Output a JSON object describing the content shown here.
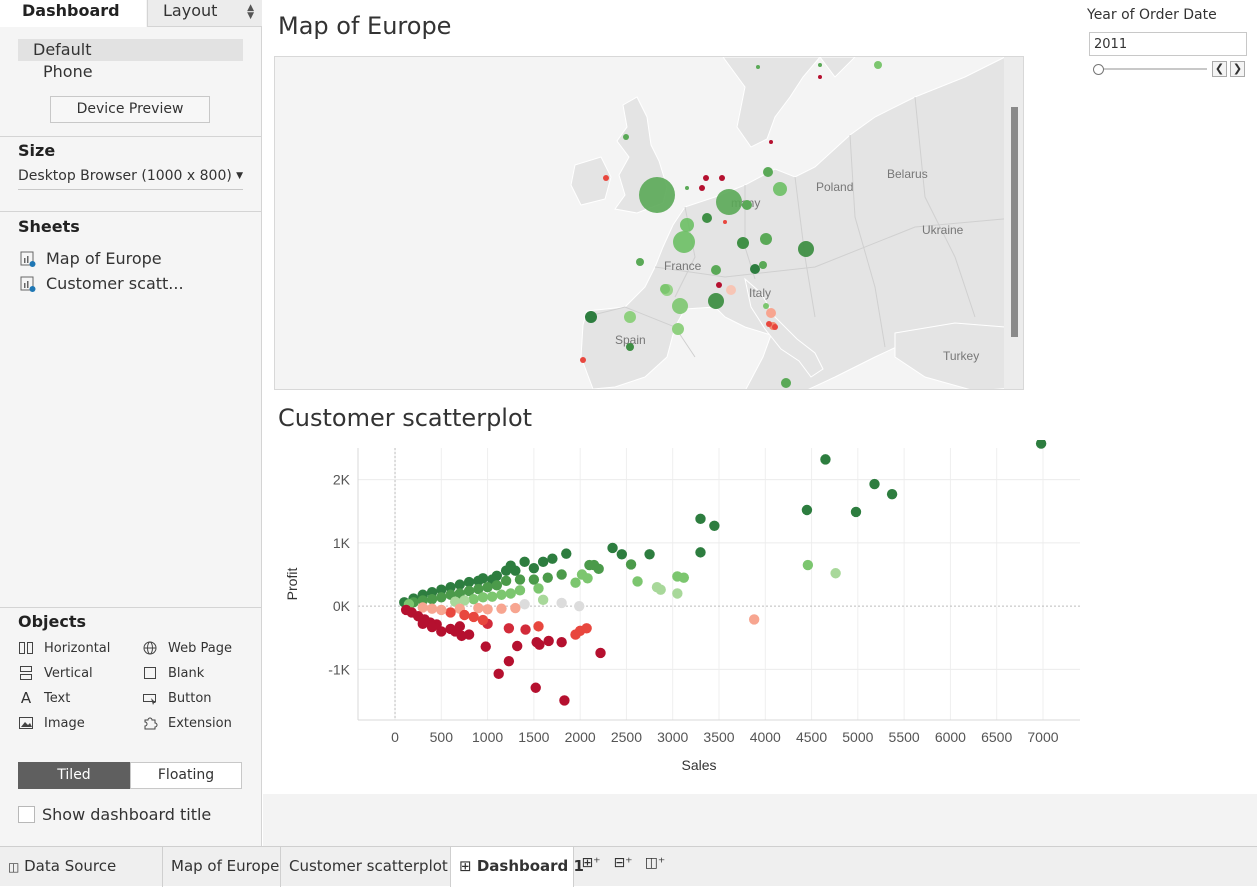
{
  "left_panel": {
    "tabs": {
      "dashboard": "Dashboard",
      "layout": "Layout"
    },
    "devices": {
      "default": "Default",
      "phone": "Phone"
    },
    "device_preview_label": "Device Preview",
    "size": {
      "heading": "Size",
      "value": "Desktop Browser (1000 x 800)"
    },
    "sheets": {
      "heading": "Sheets",
      "items": [
        "Map of Europe",
        "Customer scatt..."
      ]
    },
    "objects": {
      "heading": "Objects",
      "items": [
        "Horizontal",
        "Web Page",
        "Vertical",
        "Blank",
        "Text",
        "Button",
        "Image",
        "Extension"
      ]
    },
    "tiled_label": "Tiled",
    "floating_label": "Floating",
    "show_title_label": "Show dashboard title"
  },
  "map": {
    "title": "Map of Europe",
    "labels": [
      "Poland",
      "Belarus",
      "Ukraine",
      "France",
      "Spain",
      "Turkey",
      "many",
      "Italy"
    ]
  },
  "scatter": {
    "title": "Customer scatterplot"
  },
  "filter": {
    "label": "Year of Order Date",
    "value": "2011"
  },
  "bottom_tabs": {
    "data_source": "Data Source",
    "map": "Map of Europe",
    "scatter": "Customer scatterplot",
    "dashboard": "Dashboard 1"
  },
  "colors": {
    "dark_green": "#2d7d3f",
    "mid_green": "#5aa957",
    "light_green": "#a8d89a",
    "dark_red": "#b5102f",
    "mid_red": "#e8473e",
    "light_red": "#f7a590"
  },
  "chart_data": {
    "type": "scatter",
    "xlabel": "Sales",
    "ylabel": "Profit",
    "xlim": [
      -400,
      7400
    ],
    "ylim": [
      -1800,
      2500
    ],
    "xticks": [
      0,
      500,
      1000,
      1500,
      2000,
      2500,
      3000,
      3500,
      4000,
      4500,
      5000,
      5500,
      6000,
      6500,
      7000
    ],
    "xtick_labels": [
      "0",
      "500",
      "1000",
      "1500",
      "2000",
      "2500",
      "3000",
      "3500",
      "4000",
      "4500",
      "5000",
      "5500",
      "6000",
      "6500",
      "7000"
    ],
    "yticks": [
      -1000,
      0,
      1000,
      2000
    ],
    "ytick_labels": [
      "-1K",
      "0K",
      "1K",
      "2K"
    ],
    "grid": true,
    "points": [
      [
        6980,
        2570
      ],
      [
        4650,
        2320
      ],
      [
        5180,
        1930
      ],
      [
        5370,
        1770
      ],
      [
        4980,
        1490
      ],
      [
        4450,
        1520
      ],
      [
        3300,
        1380
      ],
      [
        3450,
        1270
      ],
      [
        3300,
        850
      ],
      [
        4460,
        650
      ],
      [
        4760,
        520
      ],
      [
        2750,
        820
      ],
      [
        2350,
        920
      ],
      [
        2450,
        820
      ],
      [
        2550,
        660
      ],
      [
        2620,
        390
      ],
      [
        2830,
        300
      ],
      [
        2870,
        260
      ],
      [
        3050,
        470
      ],
      [
        3120,
        450
      ],
      [
        3050,
        200
      ],
      [
        2100,
        650
      ],
      [
        2200,
        590
      ],
      [
        2150,
        650
      ],
      [
        2020,
        500
      ],
      [
        2080,
        440
      ],
      [
        1950,
        370
      ],
      [
        1850,
        830
      ],
      [
        1700,
        750
      ],
      [
        1800,
        500
      ],
      [
        1600,
        700
      ],
      [
        1500,
        600
      ],
      [
        1400,
        700
      ],
      [
        1300,
        560
      ],
      [
        1250,
        640
      ],
      [
        1200,
        560
      ],
      [
        1100,
        480
      ],
      [
        1050,
        420
      ],
      [
        950,
        440
      ],
      [
        900,
        400
      ],
      [
        800,
        380
      ],
      [
        700,
        340
      ],
      [
        600,
        300
      ],
      [
        500,
        260
      ],
      [
        400,
        220
      ],
      [
        300,
        180
      ],
      [
        200,
        120
      ],
      [
        100,
        60
      ],
      [
        1650,
        450
      ],
      [
        1500,
        420
      ],
      [
        1350,
        420
      ],
      [
        1200,
        400
      ],
      [
        1100,
        330
      ],
      [
        1000,
        300
      ],
      [
        900,
        270
      ],
      [
        800,
        240
      ],
      [
        700,
        200
      ],
      [
        600,
        180
      ],
      [
        500,
        140
      ],
      [
        400,
        110
      ],
      [
        300,
        90
      ],
      [
        200,
        60
      ],
      [
        150,
        30
      ],
      [
        1550,
        280
      ],
      [
        1350,
        250
      ],
      [
        1250,
        200
      ],
      [
        1150,
        180
      ],
      [
        1050,
        150
      ],
      [
        950,
        140
      ],
      [
        850,
        110
      ],
      [
        750,
        90
      ],
      [
        650,
        70
      ],
      [
        1990,
        0
      ],
      [
        1800,
        50
      ],
      [
        1600,
        100
      ],
      [
        1400,
        30
      ],
      [
        1300,
        -30
      ],
      [
        1150,
        -40
      ],
      [
        1000,
        -50
      ],
      [
        900,
        -30
      ],
      [
        700,
        -40
      ],
      [
        3880,
        -210
      ],
      [
        1230,
        -350
      ],
      [
        1410,
        -370
      ],
      [
        1550,
        -320
      ],
      [
        2000,
        -390
      ],
      [
        2070,
        -350
      ],
      [
        1800,
        -570
      ],
      [
        1950,
        -450
      ],
      [
        2220,
        -740
      ],
      [
        1660,
        -550
      ],
      [
        1000,
        -280
      ],
      [
        950,
        -220
      ],
      [
        850,
        -170
      ],
      [
        750,
        -140
      ],
      [
        600,
        -100
      ],
      [
        500,
        -60
      ],
      [
        400,
        -40
      ],
      [
        300,
        -20
      ],
      [
        980,
        -640
      ],
      [
        1120,
        -1070
      ],
      [
        1230,
        -870
      ],
      [
        1320,
        -630
      ],
      [
        1530,
        -570
      ],
      [
        1560,
        -610
      ],
      [
        1520,
        -1290
      ],
      [
        1830,
        -1490
      ],
      [
        700,
        -320
      ],
      [
        600,
        -360
      ],
      [
        500,
        -400
      ],
      [
        450,
        -290
      ],
      [
        380,
        -260
      ],
      [
        320,
        -210
      ],
      [
        250,
        -160
      ],
      [
        180,
        -100
      ],
      [
        120,
        -60
      ],
      [
        800,
        -450
      ],
      [
        720,
        -470
      ],
      [
        650,
        -400
      ],
      [
        400,
        -330
      ],
      [
        300,
        -280
      ]
    ]
  }
}
